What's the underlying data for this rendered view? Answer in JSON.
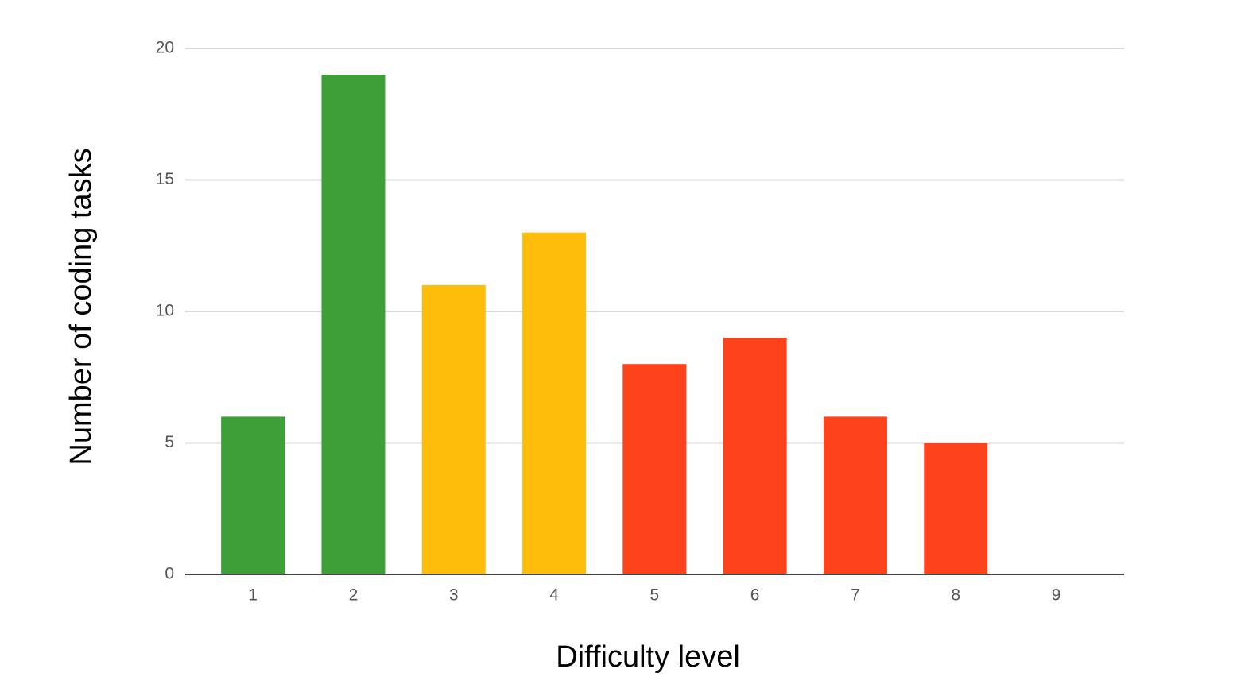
{
  "chart_data": {
    "type": "bar",
    "x_label": "Difficulty level",
    "y_label": "Number of coding tasks",
    "categories": [
      "1",
      "2",
      "3",
      "4",
      "5",
      "6",
      "7",
      "8",
      "9"
    ],
    "values": [
      6,
      19,
      11,
      13,
      8,
      9,
      6,
      5,
      0
    ],
    "colors": [
      "#3d9f37",
      "#3d9f37",
      "#fdbd0a",
      "#fdbd0a",
      "#fe421c",
      "#fe421c",
      "#fe421c",
      "#fe421c",
      "#fe421c"
    ],
    "ylim": [
      0,
      20
    ],
    "yticks": [
      0,
      5,
      10,
      15,
      20
    ],
    "grid": true
  }
}
